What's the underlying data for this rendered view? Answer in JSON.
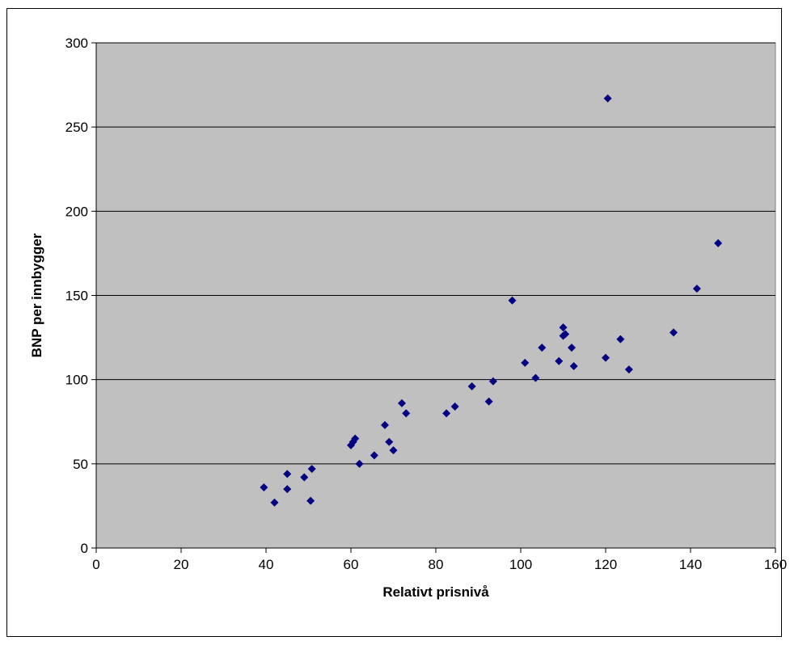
{
  "chart_data": {
    "type": "scatter",
    "title": "",
    "xlabel": "Relativt prisnivå",
    "ylabel": "BNP per innbygger",
    "xlim": [
      0,
      160
    ],
    "ylim": [
      0,
      300
    ],
    "xticks": [
      "0",
      "20",
      "40",
      "60",
      "80",
      "100",
      "120",
      "140",
      "160"
    ],
    "yticks": [
      "0",
      "50",
      "100",
      "150",
      "200",
      "250",
      "300"
    ],
    "grid": "horizontal",
    "legend": "none",
    "colors": {
      "plot_background": "#c0c0c0",
      "marker": "#000080",
      "gridline": "#000000"
    },
    "series": [
      {
        "x": [
          39.5,
          42,
          45,
          45,
          49,
          50.5,
          50.8,
          60,
          60.5,
          61,
          62,
          65.5,
          68,
          69,
          70,
          72,
          73,
          82.5,
          84.5,
          88.5,
          92.5,
          93.5,
          98,
          101,
          103.5,
          105,
          109,
          110,
          110,
          110.5,
          112,
          112.5,
          120,
          120.5,
          123.5,
          125.5,
          136,
          141.5,
          146.5
        ],
        "y": [
          36,
          27,
          44,
          35,
          42,
          28,
          47,
          61,
          63,
          65,
          50,
          55,
          73,
          63,
          58,
          86,
          80,
          80,
          84,
          96,
          87,
          99,
          147,
          110,
          101,
          119,
          111,
          131,
          126,
          127,
          119,
          108,
          113,
          267,
          124,
          106,
          128,
          154,
          181
        ]
      }
    ]
  }
}
